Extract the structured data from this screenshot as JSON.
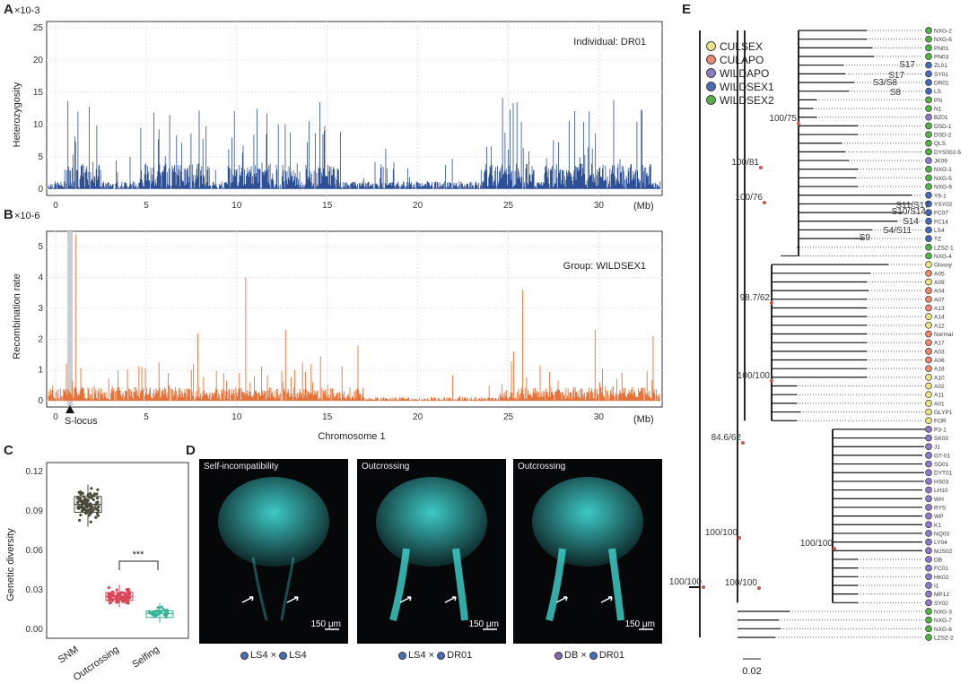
{
  "panels": {
    "A": {
      "letter": "A",
      "y_exp": "×10-3",
      "ylabel": "Heterozygosity",
      "annotation": "Individual: DR01",
      "yticks": [
        "0",
        "5",
        "10",
        "15",
        "20",
        "25"
      ],
      "xticks": [
        "0",
        "5",
        "10",
        "15",
        "20",
        "25",
        "30"
      ],
      "xunit": "(Mb)"
    },
    "B": {
      "letter": "B",
      "y_exp": "×10-6",
      "ylabel": "Recombination rate",
      "annotation": "Group: WILDSEX1",
      "yticks": [
        "0",
        "1",
        "2",
        "3",
        "4",
        "5"
      ],
      "xticks": [
        "0",
        "5",
        "10",
        "15",
        "20",
        "25",
        "30"
      ],
      "xunit": "(Mb)",
      "locus": "S-locus",
      "xlabel": "Chromosome 1"
    },
    "C": {
      "letter": "C",
      "ylabel": "Genetic diversity",
      "yticks": [
        "0.00",
        "0.03",
        "0.06",
        "0.09",
        "0.12"
      ],
      "groups": [
        "SNM",
        "Outcrossing",
        "Selfing"
      ],
      "signif": "***"
    },
    "D": {
      "letter": "D",
      "images": [
        {
          "title": "Self-incompatibility",
          "scale": "150 μm",
          "left": "LS4",
          "right": "LS4",
          "left_color": "#4a6fb5",
          "right_color": "#4a6fb5"
        },
        {
          "title": "Outcrossing",
          "scale": "150 μm",
          "left": "LS4",
          "right": "DR01",
          "left_color": "#4a6fb5",
          "right_color": "#4a6fb5"
        },
        {
          "title": "Outcrossing",
          "scale": "150 μm",
          "left": "DB",
          "right": "DR01",
          "left_color": "#7e6bb0",
          "right_color": "#4a6fb5"
        }
      ],
      "times": "×"
    },
    "E": {
      "letter": "E",
      "scalebar": "0.02",
      "legend": [
        {
          "name": "CULSEX",
          "color": "#e8e58a"
        },
        {
          "name": "CULAPO",
          "color": "#e98a72"
        },
        {
          "name": "WILDAPO",
          "color": "#8d7cc4"
        },
        {
          "name": "WILDSEX1",
          "color": "#4a69b4"
        },
        {
          "name": "WILDSEX2",
          "color": "#55b04a"
        }
      ],
      "node_labels": [
        "100/75",
        "100/81",
        "100/76",
        "98.7/62",
        "100/100",
        "84.6/62",
        "100/100",
        "100/100",
        "100/100",
        "100/100"
      ],
      "s_labels": [
        "S17",
        "S17",
        "S3/S8",
        "S8",
        "S11/S17",
        "S10/S14",
        "S14",
        "S4/S11",
        "S9"
      ],
      "tips": [
        {
          "n": "NXG-2",
          "g": 4
        },
        {
          "n": "NXG-6",
          "g": 4
        },
        {
          "n": "PN01",
          "g": 4
        },
        {
          "n": "PN03",
          "g": 4
        },
        {
          "n": "ZL01",
          "g": 3
        },
        {
          "n": "SY01",
          "g": 3
        },
        {
          "n": "DR01",
          "g": 3
        },
        {
          "n": "LS",
          "g": 3
        },
        {
          "n": "PN",
          "g": 4
        },
        {
          "n": "N1",
          "g": 4
        },
        {
          "n": "BZ01",
          "g": 2
        },
        {
          "n": "DSD-1",
          "g": 4
        },
        {
          "n": "DSD-2",
          "g": 4
        },
        {
          "n": "QLS",
          "g": 4
        },
        {
          "n": "DYS002-5",
          "g": 4
        },
        {
          "n": "JK09",
          "g": 2
        },
        {
          "n": "NXG-1",
          "g": 4
        },
        {
          "n": "NXG-5",
          "g": 4
        },
        {
          "n": "NXG-9",
          "g": 4
        },
        {
          "n": "Y6-1",
          "g": 3
        },
        {
          "n": "YSY02",
          "g": 3
        },
        {
          "n": "FC07",
          "g": 3
        },
        {
          "n": "FC14",
          "g": 3
        },
        {
          "n": "LS4",
          "g": 3
        },
        {
          "n": "TZ",
          "g": 3
        },
        {
          "n": "LZSZ-1",
          "g": 4
        },
        {
          "n": "NXG-4",
          "g": 4
        },
        {
          "n": "Glossy",
          "g": 0
        },
        {
          "n": "A05",
          "g": 1
        },
        {
          "n": "A09",
          "g": 0
        },
        {
          "n": "A04",
          "g": 1
        },
        {
          "n": "A07",
          "g": 1
        },
        {
          "n": "A13",
          "g": 1
        },
        {
          "n": "A14",
          "g": 0
        },
        {
          "n": "A12",
          "g": 0
        },
        {
          "n": "Normal",
          "g": 1
        },
        {
          "n": "A17",
          "g": 1
        },
        {
          "n": "A03",
          "g": 1
        },
        {
          "n": "A06",
          "g": 1
        },
        {
          "n": "A18",
          "g": 1
        },
        {
          "n": "A10",
          "g": 0
        },
        {
          "n": "A02",
          "g": 0
        },
        {
          "n": "A11",
          "g": 0
        },
        {
          "n": "A01",
          "g": 0
        },
        {
          "n": "GLYP1",
          "g": 0
        },
        {
          "n": "FOR",
          "g": 0
        },
        {
          "n": "P3-1",
          "g": 2
        },
        {
          "n": "SK03",
          "g": 2
        },
        {
          "n": "J1",
          "g": 2
        },
        {
          "n": "GT-01",
          "g": 2
        },
        {
          "n": "SD01",
          "g": 2
        },
        {
          "n": "DYT01",
          "g": 2
        },
        {
          "n": "HS03",
          "g": 2
        },
        {
          "n": "LH10",
          "g": 2
        },
        {
          "n": "WH",
          "g": 2
        },
        {
          "n": "RYS",
          "g": 2
        },
        {
          "n": "WP",
          "g": 2
        },
        {
          "n": "K1",
          "g": 2
        },
        {
          "n": "NQ03",
          "g": 2
        },
        {
          "n": "LY04",
          "g": 2
        },
        {
          "n": "MJS02",
          "g": 2
        },
        {
          "n": "DB",
          "g": 2
        },
        {
          "n": "FC01",
          "g": 2
        },
        {
          "n": "HK02",
          "g": 2
        },
        {
          "n": "I1",
          "g": 2
        },
        {
          "n": "MP12",
          "g": 2
        },
        {
          "n": "SY02",
          "g": 2
        },
        {
          "n": "NXG-3",
          "g": 4
        },
        {
          "n": "NXG-7",
          "g": 4
        },
        {
          "n": "NXG-8",
          "g": 4
        },
        {
          "n": "LZSZ-2",
          "g": 4
        }
      ]
    }
  },
  "colors": {
    "het": "#2c4f95",
    "rec": "#e8733a",
    "micro": "#3fd4d0",
    "sig": "#c8584e",
    "snm": "#4a4a3a",
    "out": "#d9485a",
    "self": "#38b496"
  }
}
